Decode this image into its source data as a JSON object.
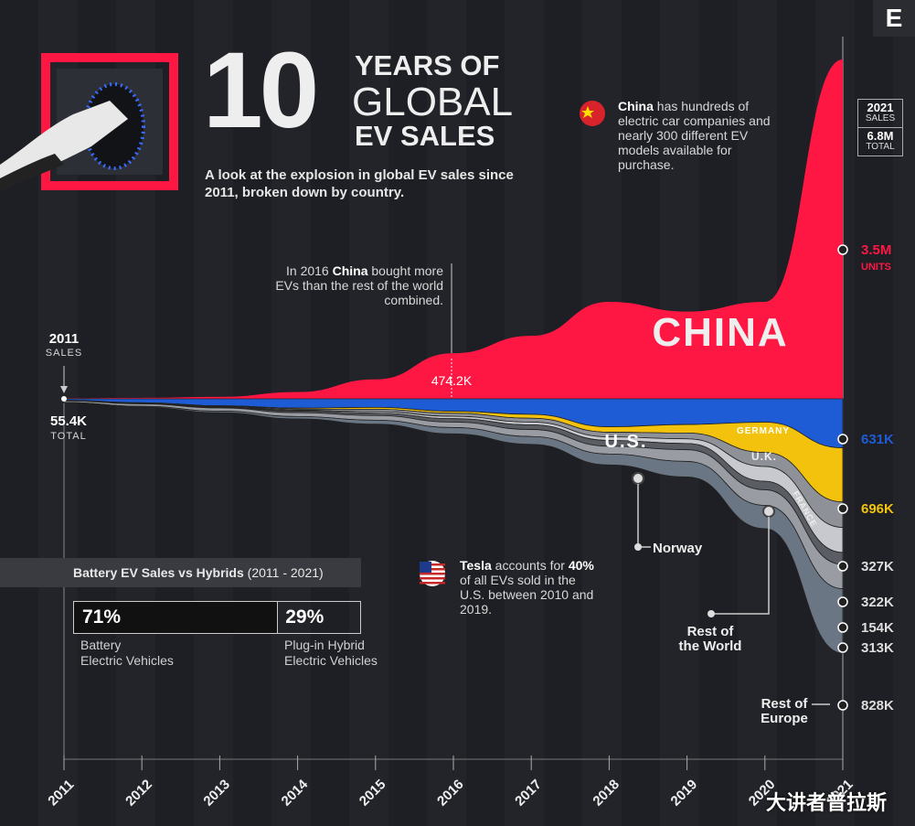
{
  "chart_data": {
    "type": "area",
    "title_number": "10",
    "title_line1": "YEARS OF",
    "title_line2": "GLOBAL",
    "title_line3": "EV SALES",
    "subtitle": "A look at the explosion in global EV sales since 2011, broken down by country.",
    "x": [
      "2011",
      "2012",
      "2013",
      "2014",
      "2015",
      "2016",
      "2017",
      "2018",
      "2019",
      "2020",
      "2021"
    ],
    "total_2011_label": "2011",
    "total_2011_sub": "SALES",
    "total_2011_value": "55.4K",
    "total_2011_unit": "TOTAL",
    "total_2021_year": "2021",
    "total_2021_sub": "SALES",
    "total_2021_value": "6.8M",
    "total_2021_unit": "TOTAL",
    "china_value_2016": "474.2K",
    "series": [
      {
        "name": "CHINA",
        "color": "#ff1744",
        "values": [
          0.005,
          0.01,
          0.02,
          0.07,
          0.2,
          0.47,
          0.65,
          1.0,
          0.9,
          1.0,
          3.5
        ],
        "label_2021": "3.5M",
        "unit_2021": "UNITS"
      },
      {
        "name": "U.S.",
        "color": "#1e5cd6",
        "values": [
          0.018,
          0.05,
          0.09,
          0.12,
          0.11,
          0.16,
          0.2,
          0.36,
          0.33,
          0.3,
          0.631
        ],
        "label_2021": "631K"
      },
      {
        "name": "GERMANY",
        "color": "#f2c20c",
        "values": [
          0.002,
          0.003,
          0.007,
          0.013,
          0.025,
          0.025,
          0.05,
          0.07,
          0.11,
          0.39,
          0.696
        ],
        "label_2021": "696K"
      },
      {
        "name": "U.K.",
        "color": "#8f9199",
        "values": [
          0.001,
          0.002,
          0.003,
          0.015,
          0.03,
          0.04,
          0.05,
          0.06,
          0.075,
          0.18,
          0.327
        ],
        "label_2021": "327K"
      },
      {
        "name": "FRANCE",
        "color": "#c8c9ce",
        "values": [
          0.003,
          0.006,
          0.009,
          0.01,
          0.02,
          0.03,
          0.035,
          0.045,
          0.06,
          0.19,
          0.322
        ],
        "label_2021": "322K"
      },
      {
        "name": "Norway",
        "color": "#5b5d64",
        "values": [
          0.002,
          0.005,
          0.009,
          0.02,
          0.03,
          0.045,
          0.06,
          0.075,
          0.08,
          0.11,
          0.154
        ],
        "label_2021": "154K"
      },
      {
        "name": "Rest of the World",
        "color": "#9a9ca3",
        "values": [
          0.02,
          0.03,
          0.04,
          0.05,
          0.06,
          0.07,
          0.09,
          0.1,
          0.15,
          0.2,
          0.313
        ],
        "label_2021": "313K"
      },
      {
        "name": "Rest of Europe",
        "color": "#6a7683",
        "values": [
          0.005,
          0.01,
          0.02,
          0.03,
          0.05,
          0.08,
          0.1,
          0.14,
          0.2,
          0.3,
          0.828
        ],
        "label_2021": "828K"
      }
    ],
    "units": "M"
  },
  "annotations": {
    "china_note_bold": "China",
    "china_note_rest": "has hundreds of electric car companies and nearly 300 different EV models available for purchase.",
    "china_2016_pre": "In 2016",
    "china_2016_bold": "China",
    "china_2016_post": "bought more EVs than the rest of the world combined.",
    "tesla_bold": "Tesla",
    "tesla_rest1": "accounts for",
    "tesla_pct": "40%",
    "tesla_rest2": "of all EVs sold in the U.S. between 2010 and 2019."
  },
  "bev": {
    "title": "Battery EV Sales vs Hybrids",
    "range": "(2011 - 2021)",
    "bev_pct": "71%",
    "phev_pct": "29%",
    "bev_share": 0.71,
    "bev_label1": "Battery",
    "bev_label2": "Electric Vehicles",
    "phev_label1": "Plug-in Hybrid",
    "phev_label2": "Electric Vehicles"
  },
  "logo": "E",
  "watermark": "大讲者普拉斯"
}
